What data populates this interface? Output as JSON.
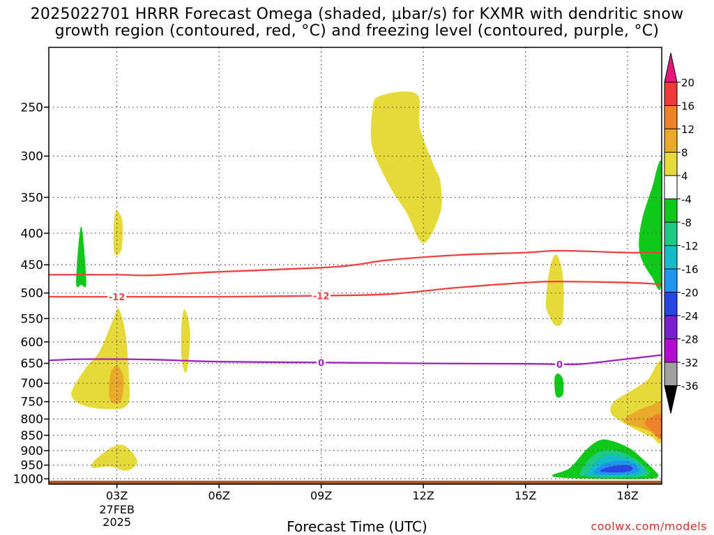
{
  "title_line1": "2025022701 HRRR Forecast Omega (shaded, μbar/s) for KXMR with dendritic snow",
  "title_line2": "growth region (contoured, red, °C) and freezing level (contoured, purple, °C)",
  "credit": "coolwx.com/models",
  "chart_data": {
    "type": "time-height cross section (filled contour + line contours)",
    "title": "2025022701 HRRR Forecast Omega (shaded, μbar/s) for KXMR with dendritic snow growth region (contoured, red, °C) and freezing level (contoured, purple, °C)",
    "xlabel": "Forecast Time (UTC)",
    "ylabel": "",
    "xlim": [
      1,
      19
    ],
    "ylim_hPa": [
      1020,
      200
    ],
    "y_scale": "log-pressure (decreasing upward)",
    "x_ticks": [
      {
        "value": 3,
        "label": "03Z",
        "sub": [
          "27FEB",
          "2025"
        ]
      },
      {
        "value": 6,
        "label": "06Z",
        "sub": []
      },
      {
        "value": 9,
        "label": "09Z",
        "sub": []
      },
      {
        "value": 12,
        "label": "12Z",
        "sub": []
      },
      {
        "value": 15,
        "label": "15Z",
        "sub": []
      },
      {
        "value": 18,
        "label": "18Z",
        "sub": []
      }
    ],
    "y_ticks": [
      250,
      300,
      350,
      400,
      450,
      500,
      550,
      600,
      650,
      700,
      750,
      800,
      850,
      900,
      950,
      1000
    ],
    "grid": true,
    "colorbar": {
      "labels": [
        "20",
        "16",
        "12",
        "8",
        "4",
        "-4",
        "-8",
        "-12",
        "-16",
        "-20",
        "-24",
        "-28",
        "-32",
        "-36"
      ],
      "colors": [
        "#e8157a",
        "#f03a3a",
        "#f0822a",
        "#e8aa28",
        "#e6d93a",
        "#ffffff",
        "#10c81a",
        "#1ec986",
        "#14bcc8",
        "#1e96f0",
        "#2846e6",
        "#7a1ed2",
        "#b40ad2",
        "#a0a0a0",
        "#000000"
      ]
    },
    "contours": [
      {
        "name": "-12",
        "color": "#f04040",
        "level_label": "-12",
        "points": [
          [
            1,
            507
          ],
          [
            3,
            507
          ],
          [
            6,
            507
          ],
          [
            9,
            505
          ],
          [
            11,
            502
          ],
          [
            13,
            490
          ],
          [
            15,
            481
          ],
          [
            16,
            479
          ],
          [
            18,
            481
          ],
          [
            19,
            484
          ]
        ]
      },
      {
        "name": "dgz-top",
        "color": "#f04040",
        "level_label": "",
        "points": [
          [
            1,
            467
          ],
          [
            3,
            467
          ],
          [
            4,
            468
          ],
          [
            6,
            462
          ],
          [
            9,
            455
          ],
          [
            10,
            450
          ],
          [
            11,
            442
          ],
          [
            13,
            434
          ],
          [
            15,
            430
          ],
          [
            16,
            427
          ],
          [
            18,
            430
          ],
          [
            19,
            430
          ]
        ]
      },
      {
        "name": "0",
        "color": "#a020c0",
        "level_label": "0",
        "points": [
          [
            1,
            643
          ],
          [
            2,
            640
          ],
          [
            4,
            641
          ],
          [
            6,
            646
          ],
          [
            9,
            648
          ],
          [
            12,
            650
          ],
          [
            15,
            651
          ],
          [
            16.5,
            652
          ],
          [
            17.5,
            644
          ],
          [
            19,
            630
          ]
        ]
      }
    ],
    "contour_labels": [
      {
        "text": "-12",
        "x": 3,
        "p": 507,
        "color": "#f04040"
      },
      {
        "text": "-12",
        "x": 9,
        "p": 505,
        "color": "#f04040"
      },
      {
        "text": "0",
        "x": 9,
        "p": 648,
        "color": "#a020c0"
      },
      {
        "text": "0",
        "x": 16,
        "p": 652,
        "color": "#a020c0"
      }
    ],
    "shaded_regions": [
      {
        "label": "upward -4 to -8",
        "value": -6,
        "color": "#10c81a",
        "points": [
          [
            1.8,
            480
          ],
          [
            1.95,
            390
          ],
          [
            2.1,
            480
          ],
          [
            1.95,
            485
          ]
        ]
      },
      {
        "label": "downward 4 to 8",
        "value": 5,
        "color": "#e6d93a",
        "points": [
          [
            2.95,
            370
          ],
          [
            3.15,
            380
          ],
          [
            3.15,
            420
          ],
          [
            3.0,
            435
          ],
          [
            2.9,
            420
          ]
        ]
      },
      {
        "label": "downward 4 to 8",
        "value": 5,
        "color": "#e6d93a",
        "points": [
          [
            1.7,
            715
          ],
          [
            2.1,
            660
          ],
          [
            2.5,
            620
          ],
          [
            2.9,
            550
          ],
          [
            3.05,
            530
          ],
          [
            3.25,
            580
          ],
          [
            3.35,
            680
          ],
          [
            3.3,
            760
          ],
          [
            2.6,
            770
          ],
          [
            2.0,
            760
          ],
          [
            1.7,
            740
          ]
        ]
      },
      {
        "label": "downward 8 to 12",
        "value": 10,
        "color": "#e8aa28",
        "points": [
          [
            2.8,
            680
          ],
          [
            3.0,
            655
          ],
          [
            3.2,
            690
          ],
          [
            3.1,
            750
          ],
          [
            2.8,
            745
          ]
        ]
      },
      {
        "label": "downward 4 to 8",
        "value": 5,
        "color": "#e6d93a",
        "points": [
          [
            4.9,
            560
          ],
          [
            5.0,
            532
          ],
          [
            5.15,
            580
          ],
          [
            5.05,
            670
          ],
          [
            4.9,
            640
          ]
        ]
      },
      {
        "label": "downward 4 to 8",
        "value": 5,
        "color": "#e6d93a",
        "points": [
          [
            2.3,
            940
          ],
          [
            2.7,
            900
          ],
          [
            3.1,
            880
          ],
          [
            3.4,
            900
          ],
          [
            3.6,
            940
          ],
          [
            3.3,
            970
          ],
          [
            2.8,
            955
          ],
          [
            2.3,
            960
          ]
        ]
      },
      {
        "label": "downward 4 to 8",
        "value": 5,
        "color": "#e6d93a",
        "points": [
          [
            10.5,
            255
          ],
          [
            10.7,
            240
          ],
          [
            11.8,
            238
          ],
          [
            11.9,
            270
          ],
          [
            12.3,
            310
          ],
          [
            12.5,
            330
          ],
          [
            12.5,
            370
          ],
          [
            12.0,
            415
          ],
          [
            11.5,
            370
          ],
          [
            11.0,
            335
          ],
          [
            10.5,
            290
          ]
        ]
      },
      {
        "label": "downward 4 to 8",
        "value": 5,
        "color": "#e6d93a",
        "points": [
          [
            15.6,
            520
          ],
          [
            15.7,
            460
          ],
          [
            15.9,
            433
          ],
          [
            16.1,
            470
          ],
          [
            16.1,
            550
          ],
          [
            15.9,
            565
          ],
          [
            15.7,
            545
          ]
        ]
      },
      {
        "label": "upward -4 to -8",
        "value": -6,
        "color": "#10c81a",
        "points": [
          [
            15.85,
            690
          ],
          [
            15.95,
            675
          ],
          [
            16.1,
            690
          ],
          [
            16.1,
            730
          ],
          [
            15.9,
            735
          ]
        ]
      },
      {
        "label": "upward -4 to -8",
        "value": -6,
        "color": "#10c81a",
        "points": [
          [
            18.35,
            430
          ],
          [
            18.4,
            385
          ],
          [
            18.7,
            340
          ],
          [
            19.0,
            310
          ],
          [
            19.0,
            480
          ],
          [
            18.7,
            470
          ]
        ]
      },
      {
        "label": "downward 4 to 8",
        "value": 5,
        "color": "#e6d93a",
        "points": [
          [
            17.5,
            780
          ],
          [
            17.6,
            750
          ],
          [
            18.2,
            715
          ],
          [
            18.6,
            690
          ],
          [
            19.0,
            650
          ],
          [
            19.0,
            860
          ],
          [
            18.7,
            855
          ],
          [
            18.2,
            830
          ],
          [
            17.7,
            800
          ]
        ]
      },
      {
        "label": "downward 8 to 12",
        "value": 10,
        "color": "#e8aa28",
        "points": [
          [
            17.9,
            800
          ],
          [
            18.3,
            775
          ],
          [
            18.7,
            760
          ],
          [
            19.0,
            755
          ],
          [
            19.0,
            860
          ],
          [
            18.6,
            835
          ],
          [
            18.0,
            815
          ]
        ]
      },
      {
        "label": "downward 12 to 16",
        "value": 14,
        "color": "#f0822a",
        "points": [
          [
            18.5,
            810
          ],
          [
            18.8,
            790
          ],
          [
            19.0,
            790
          ],
          [
            19.0,
            860
          ],
          [
            18.7,
            835
          ]
        ]
      },
      {
        "label": "upward -4 to -8",
        "value": -6,
        "color": "#10c81a",
        "points": [
          [
            15.8,
            985
          ],
          [
            16.3,
            960
          ],
          [
            16.8,
            895
          ],
          [
            17.2,
            865
          ],
          [
            17.6,
            870
          ],
          [
            18.1,
            895
          ],
          [
            18.5,
            935
          ],
          [
            18.8,
            970
          ],
          [
            18.9,
            990
          ],
          [
            18.6,
            1000
          ],
          [
            17.0,
            1000
          ],
          [
            16.0,
            995
          ]
        ]
      },
      {
        "label": "upward -8 to -12",
        "value": -10,
        "color": "#1ec986",
        "points": [
          [
            16.6,
            980
          ],
          [
            16.9,
            925
          ],
          [
            17.3,
            900
          ],
          [
            17.8,
            905
          ],
          [
            18.3,
            935
          ],
          [
            18.6,
            970
          ],
          [
            18.5,
            990
          ],
          [
            17.5,
            995
          ],
          [
            16.8,
            990
          ]
        ]
      },
      {
        "label": "upward -12 to -16",
        "value": -14,
        "color": "#14bcc8",
        "points": [
          [
            16.8,
            980
          ],
          [
            17.1,
            935
          ],
          [
            17.5,
            915
          ],
          [
            18.0,
            925
          ],
          [
            18.4,
            955
          ],
          [
            18.4,
            985
          ],
          [
            17.5,
            990
          ],
          [
            16.9,
            988
          ]
        ]
      },
      {
        "label": "upward -16 to -20",
        "value": -18,
        "color": "#1e96f0",
        "points": [
          [
            17.0,
            975
          ],
          [
            17.3,
            945
          ],
          [
            17.8,
            935
          ],
          [
            18.2,
            945
          ],
          [
            18.3,
            975
          ],
          [
            17.6,
            985
          ],
          [
            17.1,
            983
          ]
        ]
      },
      {
        "label": "upward -20 to -24",
        "value": -22,
        "color": "#2846e6",
        "points": [
          [
            17.2,
            968
          ],
          [
            17.5,
            955
          ],
          [
            18.0,
            950
          ],
          [
            18.15,
            965
          ],
          [
            17.9,
            975
          ],
          [
            17.3,
            975
          ]
        ]
      }
    ],
    "terrain": {
      "color": "#a8582c",
      "top_hPa": 1007
    }
  }
}
